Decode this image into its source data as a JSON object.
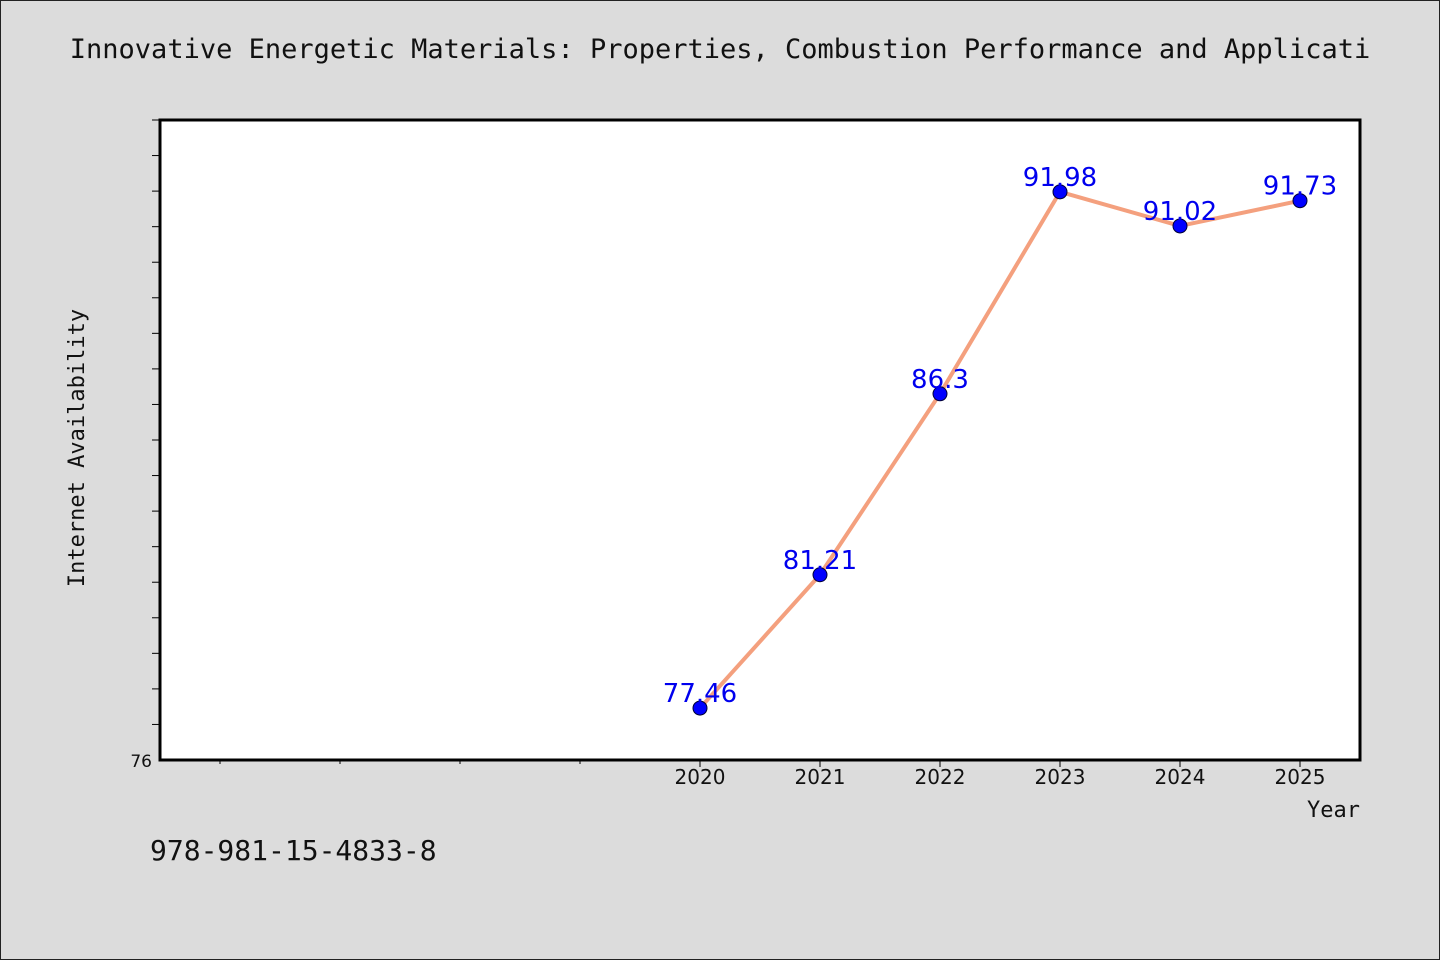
{
  "page": {
    "title": "Innovative Energetic Materials: Properties, Combustion Performance and Applicati",
    "footer": "978-981-15-4833-8"
  },
  "colors": {
    "background": "#dcdcdc",
    "plot_background": "#ffffff",
    "line": "#f4a07e",
    "marker": "#0000ff",
    "data_label": "#0000ee"
  },
  "chart_data": {
    "type": "line",
    "title": "Innovative Energetic Materials: Properties, Combustion Performance and Applicati",
    "xlabel": "Year",
    "ylabel": "Internet Availability",
    "x": [
      "2020",
      "2021",
      "2022",
      "2023",
      "2024",
      "2025"
    ],
    "x_axis_slots": 10,
    "series": [
      {
        "values": [
          77.46,
          81.21,
          86.3,
          91.98,
          91.02,
          91.73
        ],
        "labels": [
          "77.46",
          "81.21",
          "86.3",
          "91.98",
          "91.02",
          "91.73"
        ]
      }
    ],
    "ylim": [
      76,
      94
    ],
    "yticks_labeled": [
      "76"
    ],
    "y_minor_tick_step": 1,
    "grid": false,
    "legend": "none"
  }
}
